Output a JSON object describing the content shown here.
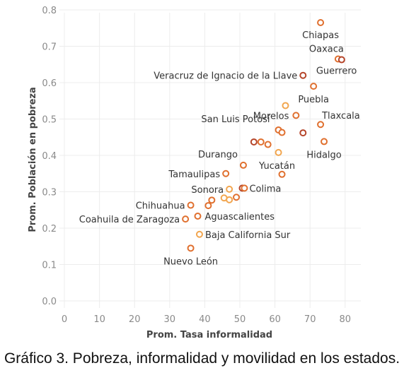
{
  "caption": "Gráfico 3. Pobreza, informalidad y movilidad en los estados.",
  "chart_data": {
    "type": "scatter",
    "xlabel": "Prom. Tasa informalidad",
    "ylabel": "Prom. Población en pobreza",
    "xlim": [
      0,
      82
    ],
    "ylim": [
      0,
      0.8
    ],
    "x_ticks": [
      0,
      10,
      20,
      30,
      40,
      50,
      60,
      70,
      80
    ],
    "y_ticks": [
      0.0,
      0.1,
      0.2,
      0.3,
      0.4,
      0.5,
      0.6,
      0.7,
      0.8
    ],
    "y_tick_labels": [
      "0.0",
      "0.1",
      "0.2",
      "0.3",
      "0.4",
      "0.5",
      "0.6",
      "0.7",
      "0.8"
    ],
    "grid": true,
    "colors": {
      "dark": "#b5452a",
      "mid": "#e0702f",
      "light": "#f2a64f"
    },
    "points": [
      {
        "x": 73,
        "y": 0.765,
        "label": "Chiapas",
        "shade": "mid"
      },
      {
        "x": 78,
        "y": 0.665,
        "label": "Oaxaca",
        "shade": "mid"
      },
      {
        "x": 79,
        "y": 0.663,
        "label": "Guerrero",
        "shade": "dark"
      },
      {
        "x": 68,
        "y": 0.62,
        "label": "Veracruz de Ignacio de la Llave",
        "shade": "dark"
      },
      {
        "x": 71,
        "y": 0.59,
        "label": "Puebla",
        "shade": "mid"
      },
      {
        "x": 63,
        "y": 0.537,
        "label": "",
        "shade": "light"
      },
      {
        "x": 66,
        "y": 0.51,
        "label": "Morelos",
        "shade": "mid"
      },
      {
        "x": 73,
        "y": 0.485,
        "label": "Tlaxcala",
        "shade": "mid"
      },
      {
        "x": 61,
        "y": 0.47,
        "label": "San Luis Potosí",
        "shade": "mid"
      },
      {
        "x": 62,
        "y": 0.463,
        "label": "",
        "shade": "mid"
      },
      {
        "x": 68,
        "y": 0.462,
        "label": "",
        "shade": "dark"
      },
      {
        "x": 74,
        "y": 0.438,
        "label": "Hidalgo",
        "shade": "mid"
      },
      {
        "x": 54,
        "y": 0.437,
        "label": "",
        "shade": "dark"
      },
      {
        "x": 56,
        "y": 0.437,
        "label": "",
        "shade": "mid"
      },
      {
        "x": 58,
        "y": 0.43,
        "label": "",
        "shade": "mid"
      },
      {
        "x": 61,
        "y": 0.408,
        "label": "Yucatán",
        "shade": "light"
      },
      {
        "x": 51,
        "y": 0.373,
        "label": "Durango",
        "shade": "mid"
      },
      {
        "x": 46,
        "y": 0.35,
        "label": "Tamaulipas",
        "shade": "mid"
      },
      {
        "x": 62,
        "y": 0.348,
        "label": "",
        "shade": "mid"
      },
      {
        "x": 47,
        "y": 0.307,
        "label": "Sonora",
        "shade": "light"
      },
      {
        "x": 50.7,
        "y": 0.31,
        "label": "Colima",
        "shade": "dark"
      },
      {
        "x": 51.3,
        "y": 0.31,
        "label": "",
        "shade": "mid"
      },
      {
        "x": 45.5,
        "y": 0.283,
        "label": "",
        "shade": "light"
      },
      {
        "x": 47,
        "y": 0.278,
        "label": "",
        "shade": "light"
      },
      {
        "x": 49,
        "y": 0.285,
        "label": "",
        "shade": "mid"
      },
      {
        "x": 42,
        "y": 0.277,
        "label": "",
        "shade": "mid"
      },
      {
        "x": 36,
        "y": 0.263,
        "label": "Chihuahua",
        "shade": "mid"
      },
      {
        "x": 41,
        "y": 0.262,
        "label": "",
        "shade": "mid"
      },
      {
        "x": 38,
        "y": 0.233,
        "label": "Aguascalientes",
        "shade": "mid"
      },
      {
        "x": 34.5,
        "y": 0.225,
        "label": "Coahuila de Zaragoza",
        "shade": "mid"
      },
      {
        "x": 38.5,
        "y": 0.183,
        "label": "Baja California Sur",
        "shade": "light"
      },
      {
        "x": 36,
        "y": 0.145,
        "label": "Nuevo León",
        "shade": "mid"
      }
    ]
  }
}
